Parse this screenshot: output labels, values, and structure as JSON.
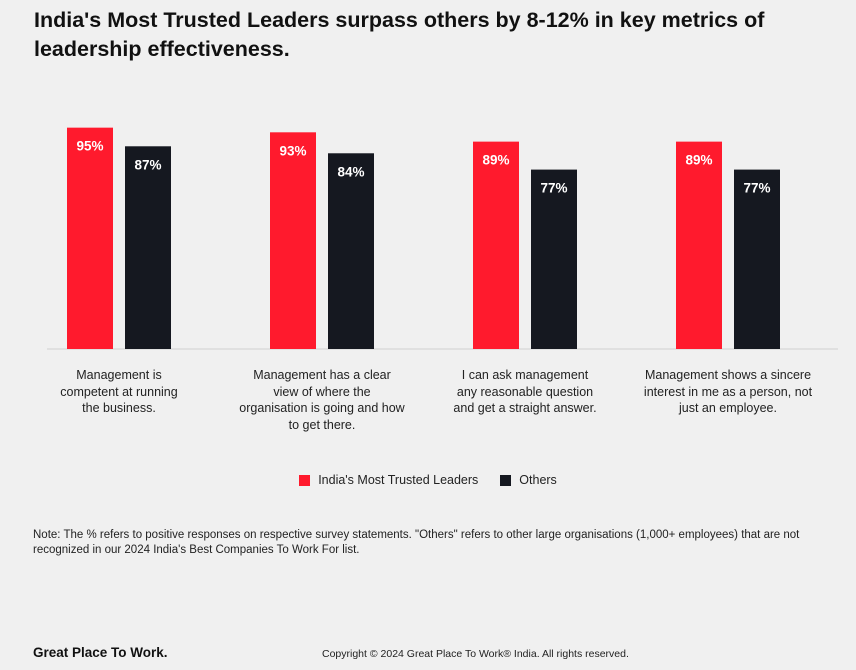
{
  "chart_data": {
    "type": "bar",
    "title": "India's Most Trusted Leaders surpass others  by 8-12% in key metrics of leadership effectiveness.",
    "categories": [
      "Management is competent at running the business.",
      "Management has a clear view of where the organisation is going and how to get there.",
      "I can ask management any reasonable question and get a straight answer.",
      "Management shows a sincere interest in me as a person, not just an employee."
    ],
    "category_lines": [
      [
        "Management is",
        "competent at running",
        "the business."
      ],
      [
        "Management has a clear",
        "view of where the",
        "organisation is going and how",
        "to get there."
      ],
      [
        "I can ask management",
        "any reasonable question",
        "and get a straight answer."
      ],
      [
        "Management shows a sincere",
        "interest in me as a person, not",
        "just an employee."
      ]
    ],
    "series": [
      {
        "name": "India's Most Trusted Leaders",
        "color": "#ff1a2d",
        "values": [
          95,
          93,
          89,
          89
        ],
        "labels": [
          "95%",
          "93%",
          "89%",
          "89%"
        ]
      },
      {
        "name": "Others",
        "color": "#151820",
        "values": [
          87,
          84,
          77,
          77
        ],
        "labels": [
          "87%",
          "84%",
          "77%",
          "77%"
        ]
      }
    ],
    "ylim": [
      0,
      100
    ],
    "grid": false,
    "legend": "bottom-center",
    "xlabel": "",
    "ylabel": ""
  },
  "note": "Note: The % refers to positive responses on respective survey statements. \"Others\" refers to other large organisations (1,000+ employees) that are not recognized in our 2024 India's Best Companies To Work For list.",
  "footer": {
    "brand": "Great Place To Work.",
    "copyright": "Copyright © 2024 Great Place To Work® India. All rights reserved."
  }
}
